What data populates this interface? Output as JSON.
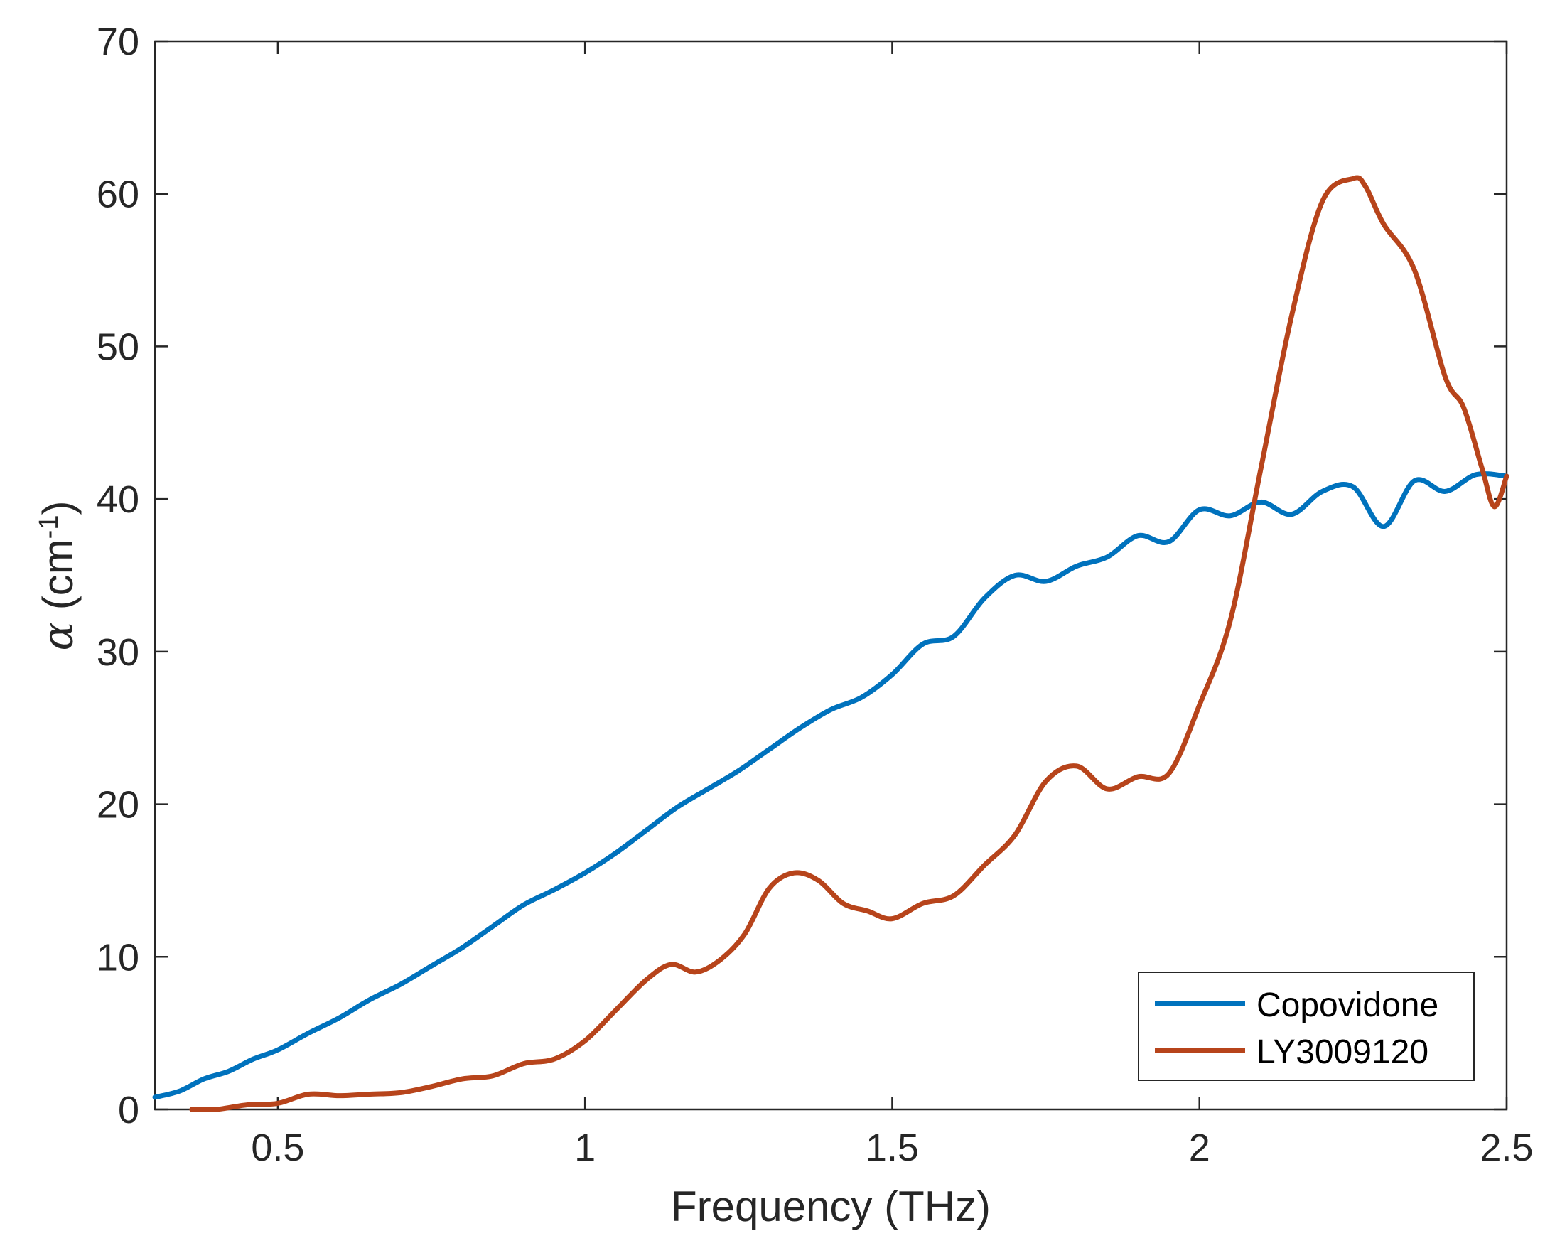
{
  "chart_data": {
    "type": "line",
    "title": "",
    "xlabel": "Frequency (THz)",
    "ylabel_symbol": "α",
    "ylabel_main": " (cm",
    "ylabel_sup": "-1",
    "ylabel_close": ")",
    "xlim": [
      0.3,
      2.5
    ],
    "ylim": [
      0,
      70
    ],
    "xticks": [
      0.5,
      1,
      1.5,
      2,
      2.5
    ],
    "xtick_labels": [
      "0.5",
      "1",
      "1.5",
      "2",
      "2.5"
    ],
    "yticks": [
      0,
      10,
      20,
      30,
      40,
      50,
      60,
      70
    ],
    "ytick_labels": [
      "0",
      "10",
      "20",
      "30",
      "40",
      "50",
      "60",
      "70"
    ],
    "grid": false,
    "legend_position": "bottom-right",
    "series": [
      {
        "name": "Copovidone",
        "color": "#0072BD",
        "x": [
          0.3,
          0.34,
          0.38,
          0.42,
          0.46,
          0.5,
          0.55,
          0.6,
          0.65,
          0.7,
          0.75,
          0.8,
          0.85,
          0.9,
          0.95,
          1.0,
          1.05,
          1.1,
          1.15,
          1.2,
          1.25,
          1.3,
          1.35,
          1.4,
          1.45,
          1.5,
          1.55,
          1.6,
          1.65,
          1.7,
          1.75,
          1.8,
          1.85,
          1.9,
          1.95,
          2.0,
          2.05,
          2.1,
          2.15,
          2.2,
          2.25,
          2.3,
          2.35,
          2.4,
          2.45,
          2.5
        ],
        "y": [
          0.8,
          1.2,
          2.0,
          2.5,
          3.3,
          3.9,
          5.0,
          6.0,
          7.2,
          8.2,
          9.4,
          10.6,
          12.0,
          13.4,
          14.4,
          15.5,
          16.8,
          18.3,
          19.8,
          21.0,
          22.2,
          23.6,
          25.0,
          26.2,
          27.0,
          28.5,
          30.5,
          31.0,
          33.5,
          35.0,
          34.6,
          35.6,
          36.2,
          37.6,
          37.2,
          39.3,
          38.9,
          39.8,
          39.0,
          40.5,
          40.8,
          38.2,
          41.2,
          40.5,
          41.6,
          41.5
        ]
      },
      {
        "name": "LY3009120",
        "color": "#B7441B",
        "x": [
          0.36,
          0.4,
          0.45,
          0.5,
          0.55,
          0.6,
          0.65,
          0.7,
          0.75,
          0.8,
          0.85,
          0.9,
          0.95,
          1.0,
          1.05,
          1.1,
          1.14,
          1.18,
          1.22,
          1.26,
          1.3,
          1.34,
          1.38,
          1.42,
          1.46,
          1.5,
          1.55,
          1.6,
          1.65,
          1.7,
          1.75,
          1.8,
          1.85,
          1.9,
          1.95,
          2.0,
          2.05,
          2.1,
          2.15,
          2.2,
          2.25,
          2.27,
          2.3,
          2.35,
          2.4,
          2.43,
          2.46,
          2.48,
          2.5
        ],
        "y": [
          0.0,
          0.0,
          0.3,
          0.4,
          1.0,
          0.9,
          1.0,
          1.1,
          1.5,
          2.0,
          2.2,
          3.0,
          3.3,
          4.5,
          6.5,
          8.5,
          9.5,
          9.0,
          9.8,
          11.5,
          14.5,
          15.5,
          15.0,
          13.5,
          13.0,
          12.5,
          13.5,
          14.0,
          16.0,
          18.0,
          21.5,
          22.5,
          21.0,
          21.8,
          22.0,
          26.5,
          32.0,
          42.0,
          52.0,
          59.5,
          61.0,
          60.5,
          58.0,
          55.0,
          48.0,
          46.0,
          42.0,
          39.5,
          41.5
        ]
      }
    ]
  }
}
